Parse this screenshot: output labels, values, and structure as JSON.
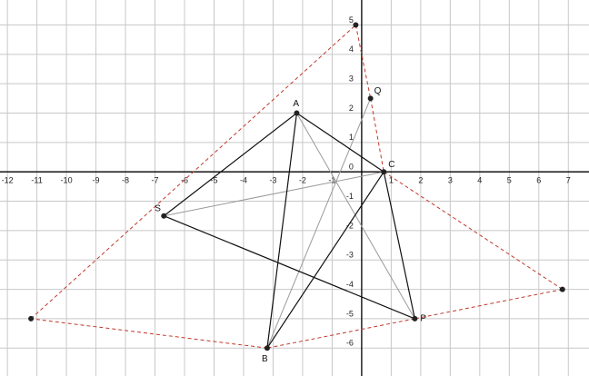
{
  "xlim": [
    -12.25,
    7.7
  ],
  "ylim": [
    -6.95,
    5.85
  ],
  "xticks": [
    -12,
    -11,
    -10,
    -9,
    -8,
    -7,
    -6,
    -5,
    -4,
    -3,
    -2,
    -1,
    1,
    2,
    3,
    4,
    5,
    6,
    7
  ],
  "yticks": [
    -6,
    -5,
    -4,
    -3,
    -2,
    -1,
    0,
    1,
    2,
    3,
    4,
    5
  ],
  "points": [
    {
      "label": "A",
      "x": -2.2,
      "y": 2
    },
    {
      "label": "B",
      "x": -3.2,
      "y": -6
    },
    {
      "label": "C",
      "x": 0.75,
      "y": 0
    },
    {
      "label": "P",
      "x": 1.8,
      "y": -5
    },
    {
      "label": "Q",
      "x": 0.3,
      "y": 2.5
    },
    {
      "label": "S",
      "x": -6.7,
      "y": -1.5
    },
    {
      "x": -0.2,
      "y": 5
    },
    {
      "x": -11.2,
      "y": -5
    },
    {
      "x": 6.8,
      "y": -4
    }
  ]
}
